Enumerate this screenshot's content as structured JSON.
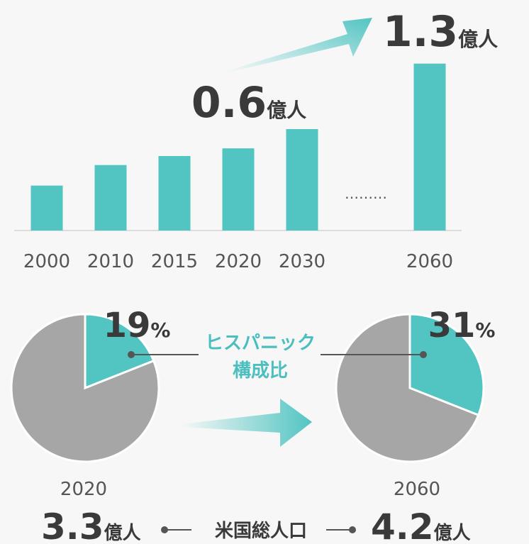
{
  "chart_data": [
    {
      "type": "bar",
      "categories": [
        "2000",
        "2010",
        "2015",
        "2020",
        "2030",
        null,
        "2060"
      ],
      "values": [
        0.35,
        0.51,
        0.58,
        0.64,
        0.79,
        null,
        1.3
      ],
      "value_labels": [
        null,
        null,
        null,
        "0.6",
        null,
        null,
        "1.3"
      ],
      "value_label_unit": "億人",
      "gap_label": "………",
      "color": "#52c5c2"
    },
    {
      "type": "pie",
      "title": "2020",
      "values": [
        19,
        81
      ],
      "value_labels": [
        "19",
        null
      ],
      "value_label_unit": "%",
      "colors": [
        "#52c5c2",
        "#a6a6a6"
      ]
    },
    {
      "type": "pie",
      "title": "2060",
      "values": [
        31,
        69
      ],
      "value_labels": [
        "31",
        null
      ],
      "value_label_unit": "%",
      "colors": [
        "#52c5c2",
        "#a6a6a6"
      ]
    }
  ],
  "pie_legend": [
    "ヒスパニック",
    "構成比"
  ],
  "population": {
    "label": "米国総人口",
    "values": [
      3.3,
      4.2
    ],
    "unit": "億人"
  }
}
